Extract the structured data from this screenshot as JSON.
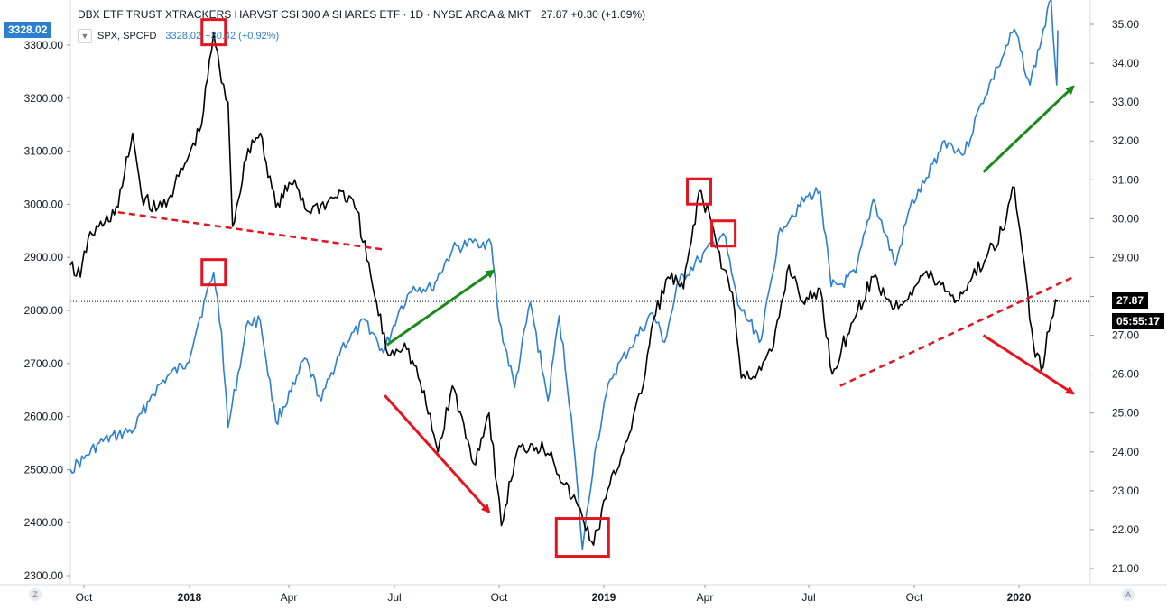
{
  "header": {
    "title": "DBX ETF TRUST XTRACKERS HARVST CSI 300 A SHARES ETF · 1D · NYSE ARCA & MKT",
    "last": "27.87",
    "change": "+0.30 (+1.09%)"
  },
  "legend": {
    "toggle_icon": "chevron-down-icon",
    "symbol": "SPX, SPCFD",
    "value": "3328.02",
    "change": "+30.42 (+0.92%)"
  },
  "tags": {
    "left_price": "3328.02",
    "right_price": "27.87",
    "right_timer": "05:55:17",
    "left_corner": "Z",
    "right_corner": "A"
  },
  "colors": {
    "spx": "#2a7fcf",
    "etf": "#000000",
    "annotation_red": "#e4151f",
    "annotation_green": "#1a8a1a",
    "left_tag_bg": "#2a7fcf",
    "right_tag_bg": "#000000"
  },
  "chart_data": {
    "type": "line",
    "left_axis": {
      "ticks": [
        2300,
        2400,
        2500,
        2600,
        2700,
        2800,
        2900,
        3000,
        3100,
        3200,
        3300
      ],
      "ylim": [
        2290,
        3330
      ]
    },
    "right_axis": {
      "ticks": [
        21,
        22,
        23,
        24,
        25,
        26,
        27,
        28,
        29,
        30,
        31,
        32,
        33,
        34,
        35
      ],
      "ylim": [
        20.75,
        35.3
      ]
    },
    "x_ticks": [
      "Oct",
      "2018",
      "Apr",
      "Jul",
      "Oct",
      "2019",
      "Apr",
      "Jul",
      "Oct",
      "2020"
    ],
    "x_range": [
      "2017-09-19",
      "2020-02-25"
    ],
    "series": [
      {
        "name": "SPX, SPCFD",
        "axis": "left",
        "points": [
          [
            "2017-09-19",
            2500
          ],
          [
            "2017-10-01",
            2520
          ],
          [
            "2017-10-15",
            2550
          ],
          [
            "2017-11-01",
            2565
          ],
          [
            "2017-11-15",
            2575
          ],
          [
            "2017-12-01",
            2640
          ],
          [
            "2017-12-15",
            2675
          ],
          [
            "2018-01-02",
            2700
          ],
          [
            "2018-01-12",
            2775
          ],
          [
            "2018-01-26",
            2872
          ],
          [
            "2018-02-02",
            2760
          ],
          [
            "2018-02-08",
            2580
          ],
          [
            "2018-02-26",
            2780
          ],
          [
            "2018-03-09",
            2780
          ],
          [
            "2018-03-23",
            2590
          ],
          [
            "2018-04-09",
            2660
          ],
          [
            "2018-04-18",
            2710
          ],
          [
            "2018-05-03",
            2630
          ],
          [
            "2018-05-21",
            2730
          ],
          [
            "2018-06-12",
            2780
          ],
          [
            "2018-06-28",
            2720
          ],
          [
            "2018-07-12",
            2800
          ],
          [
            "2018-07-25",
            2845
          ],
          [
            "2018-08-10",
            2840
          ],
          [
            "2018-08-29",
            2915
          ],
          [
            "2018-09-20",
            2930
          ],
          [
            "2018-10-03",
            2925
          ],
          [
            "2018-10-10",
            2780
          ],
          [
            "2018-10-24",
            2655
          ],
          [
            "2018-11-07",
            2815
          ],
          [
            "2018-11-23",
            2630
          ],
          [
            "2018-12-03",
            2790
          ],
          [
            "2018-12-14",
            2600
          ],
          [
            "2018-12-24",
            2350
          ],
          [
            "2019-01-04",
            2530
          ],
          [
            "2019-01-18",
            2670
          ],
          [
            "2019-02-05",
            2730
          ],
          [
            "2019-02-25",
            2795
          ],
          [
            "2019-03-08",
            2740
          ],
          [
            "2019-03-21",
            2855
          ],
          [
            "2019-04-08",
            2895
          ],
          [
            "2019-04-30",
            2945
          ],
          [
            "2019-05-13",
            2810
          ],
          [
            "2019-06-03",
            2745
          ],
          [
            "2019-06-20",
            2955
          ],
          [
            "2019-07-15",
            3015
          ],
          [
            "2019-07-26",
            3025
          ],
          [
            "2019-08-05",
            2845
          ],
          [
            "2019-08-15",
            2850
          ],
          [
            "2019-08-27",
            2870
          ],
          [
            "2019-09-12",
            3010
          ],
          [
            "2019-10-02",
            2885
          ],
          [
            "2019-10-15",
            2995
          ],
          [
            "2019-10-28",
            3040
          ],
          [
            "2019-11-15",
            3120
          ],
          [
            "2019-12-03",
            3095
          ],
          [
            "2019-12-18",
            3190
          ],
          [
            "2020-01-02",
            3258
          ],
          [
            "2020-01-17",
            3330
          ],
          [
            "2020-01-31",
            3225
          ],
          [
            "2020-02-19",
            3386
          ],
          [
            "2020-02-24",
            3225
          ],
          [
            "2020-02-25",
            3328
          ]
        ]
      },
      {
        "name": "DBX ETF TRUST XTRACKERS HARVST CSI 300 A SHARES ETF",
        "axis": "right",
        "points": [
          [
            "2017-09-19",
            28.8
          ],
          [
            "2017-09-28",
            28.5
          ],
          [
            "2017-10-05",
            29.5
          ],
          [
            "2017-10-20",
            29.9
          ],
          [
            "2017-11-01",
            30.3
          ],
          [
            "2017-11-14",
            32.2
          ],
          [
            "2017-11-22",
            30.6
          ],
          [
            "2017-12-05",
            30.2
          ],
          [
            "2017-12-18",
            30.6
          ],
          [
            "2018-01-02",
            31.5
          ],
          [
            "2018-01-15",
            32.4
          ],
          [
            "2018-01-26",
            34.8
          ],
          [
            "2018-02-02",
            33.5
          ],
          [
            "2018-02-08",
            33.0
          ],
          [
            "2018-02-12",
            29.8
          ],
          [
            "2018-02-26",
            31.8
          ],
          [
            "2018-03-09",
            32.2
          ],
          [
            "2018-03-23",
            30.3
          ],
          [
            "2018-04-09",
            31.0
          ],
          [
            "2018-04-20",
            30.2
          ],
          [
            "2018-05-08",
            30.4
          ],
          [
            "2018-05-21",
            30.7
          ],
          [
            "2018-06-04",
            30.2
          ],
          [
            "2018-06-20",
            28.0
          ],
          [
            "2018-07-02",
            26.5
          ],
          [
            "2018-07-17",
            26.8
          ],
          [
            "2018-07-31",
            25.8
          ],
          [
            "2018-08-16",
            24.0
          ],
          [
            "2018-08-29",
            25.7
          ],
          [
            "2018-09-17",
            23.7
          ],
          [
            "2018-10-01",
            25.0
          ],
          [
            "2018-10-12",
            22.1
          ],
          [
            "2018-10-26",
            24.0
          ],
          [
            "2018-11-09",
            24.2
          ],
          [
            "2018-11-26",
            24.0
          ],
          [
            "2018-12-06",
            23.2
          ],
          [
            "2018-12-20",
            22.6
          ],
          [
            "2019-01-03",
            21.6
          ],
          [
            "2019-01-14",
            22.8
          ],
          [
            "2019-01-28",
            23.9
          ],
          [
            "2019-02-15",
            25.5
          ],
          [
            "2019-02-26",
            27.4
          ],
          [
            "2019-03-11",
            28.5
          ],
          [
            "2019-03-25",
            28.2
          ],
          [
            "2019-04-08",
            30.7
          ],
          [
            "2019-04-19",
            29.9
          ],
          [
            "2019-04-30",
            28.7
          ],
          [
            "2019-05-08",
            28.1
          ],
          [
            "2019-05-16",
            25.9
          ],
          [
            "2019-06-03",
            26.1
          ],
          [
            "2019-06-14",
            26.7
          ],
          [
            "2019-06-28",
            28.8
          ],
          [
            "2019-07-12",
            27.8
          ],
          [
            "2019-07-26",
            28.2
          ],
          [
            "2019-08-06",
            26.0
          ],
          [
            "2019-08-23",
            27.3
          ],
          [
            "2019-09-12",
            28.5
          ],
          [
            "2019-10-01",
            27.7
          ],
          [
            "2019-10-15",
            28.1
          ],
          [
            "2019-10-28",
            28.6
          ],
          [
            "2019-11-12",
            28.3
          ],
          [
            "2019-11-26",
            27.9
          ],
          [
            "2019-12-10",
            28.5
          ],
          [
            "2019-12-23",
            29.0
          ],
          [
            "2020-01-06",
            29.7
          ],
          [
            "2020-01-17",
            30.8
          ],
          [
            "2020-01-24",
            29.2
          ],
          [
            "2020-02-03",
            26.8
          ],
          [
            "2020-02-10",
            26.1
          ],
          [
            "2020-02-19",
            27.4
          ],
          [
            "2020-02-25",
            27.87
          ]
        ]
      }
    ],
    "annotations": {
      "boxes": [
        {
          "date": "2018-01-26",
          "axis": "right",
          "value": 34.8
        },
        {
          "date": "2018-01-26",
          "axis": "left",
          "value": 2872
        },
        {
          "date": "2019-04-08",
          "axis": "right",
          "value": 30.7
        },
        {
          "date": "2019-04-30",
          "axis": "left",
          "value": 2945
        },
        {
          "date": "2018-12-24",
          "axis": "right",
          "value": 21.8
        }
      ],
      "trendlines": [
        {
          "color": "red",
          "dashed": true,
          "from": [
            "2017-11-01",
            "left",
            2985
          ],
          "to": [
            "2018-06-27",
            "left",
            2915
          ]
        },
        {
          "color": "red",
          "dashed": true,
          "from": [
            "2019-08-13",
            "right",
            25.7
          ],
          "to": [
            "2020-03-10",
            "right",
            28.5
          ]
        }
      ],
      "arrows": [
        {
          "color": "green",
          "from": [
            "2018-07-01",
            "left",
            2735
          ],
          "to": [
            "2018-10-05",
            "left",
            2875
          ]
        },
        {
          "color": "red",
          "from": [
            "2018-06-29",
            "left",
            2640
          ],
          "to": [
            "2018-10-01",
            "left",
            2420
          ]
        },
        {
          "color": "green",
          "from": [
            "2019-12-20",
            "right",
            31.2
          ],
          "to": [
            "2020-03-10",
            "right",
            33.4
          ]
        },
        {
          "color": "red",
          "from": [
            "2019-12-20",
            "right",
            27.0
          ],
          "to": [
            "2020-03-10",
            "right",
            25.5
          ]
        }
      ]
    }
  }
}
